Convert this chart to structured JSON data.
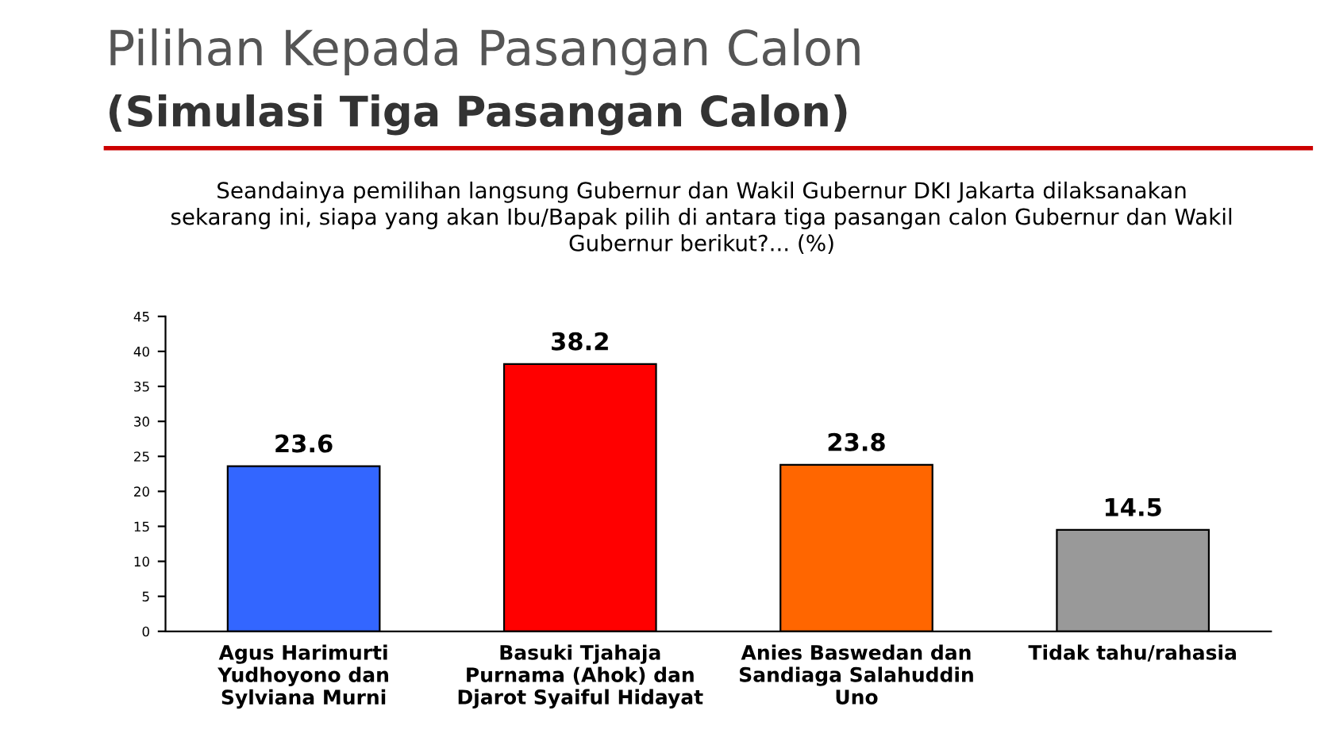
{
  "chart_data": {
    "type": "bar",
    "title": "Pilihan Kepada Pasangan Calon",
    "subtitle": "(Simulasi Tiga Pasangan Calon)",
    "annotations": [
      "Seandainya pemilihan langsung Gubernur dan Wakil Gubernur DKI Jakarta dilaksanakan\nsekarang ini, siapa yang akan Ibu/Bapak pilih di antara tiga pasangan calon Gubernur dan Wakil\nGubernur berikut?... (%)"
    ],
    "categories": [
      "Agus Harimurti\nYudhoyono dan\nSylviana Murni",
      "Basuki Tjahaja\nPurnama (Ahok) dan\nDjarot Syaiful Hidayat",
      "Anies Baswedan dan\nSandiaga Salahuddin\nUno",
      "Tidak tahu/rahasia"
    ],
    "values": [
      23.6,
      38.2,
      23.8,
      14.5
    ],
    "colors": [
      "#3366ff",
      "#ff0000",
      "#ff6600",
      "#999999"
    ],
    "ylim": [
      0,
      45
    ],
    "yticks": [
      0,
      5,
      10,
      15,
      20,
      25,
      30,
      35,
      40,
      45
    ],
    "grid": false,
    "data_labels": true
  }
}
